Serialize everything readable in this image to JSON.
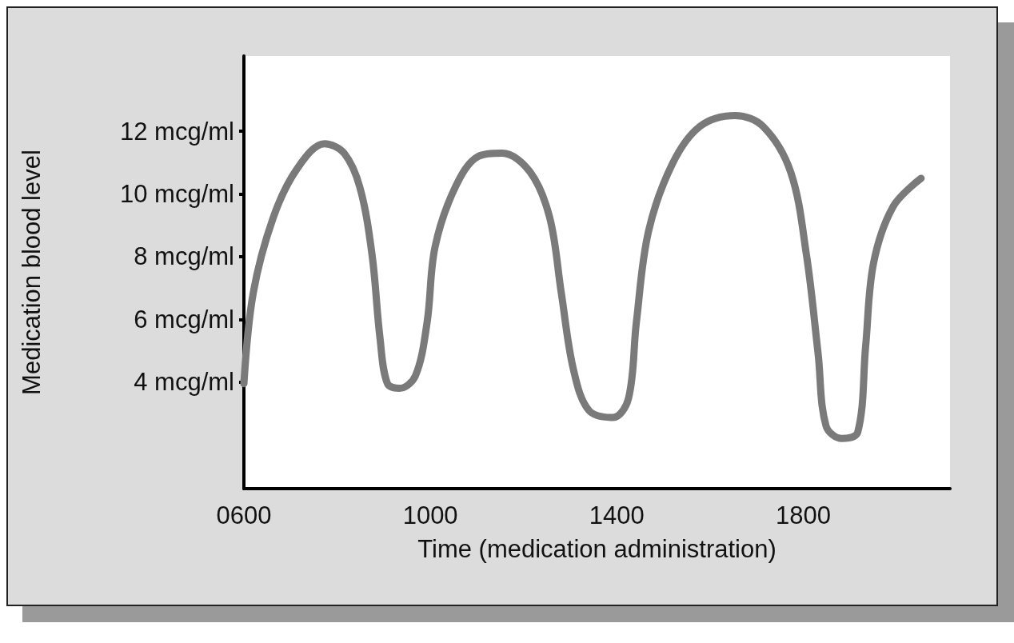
{
  "chart_data": {
    "type": "line",
    "xlabel": "Time (medication administration)",
    "ylabel": "Medication blood level",
    "xlim": [
      600,
      2115
    ],
    "xticks": [
      {
        "value": 600,
        "label": "0600"
      },
      1000,
      1400,
      1800
    ],
    "ylim": [
      0.6,
      14.4
    ],
    "yticks": [
      {
        "value": 4,
        "label": "4 mcg/ml"
      },
      {
        "value": 6,
        "label": "6 mcg/ml"
      },
      {
        "value": 8,
        "label": "8 mcg/ml"
      },
      {
        "value": 10,
        "label": "10 mcg/ml"
      },
      {
        "value": 12,
        "label": "12 mcg/ml"
      }
    ],
    "grid": false,
    "line_style": "solid",
    "series": [
      {
        "color": "#7a7a7a",
        "x": [
          600,
          620,
          663,
          714,
          773,
          815,
          849,
          875,
          892,
          908,
          934,
          968,
          993,
          1010,
          1053,
          1103,
          1154,
          1214,
          1256,
          1281,
          1307,
          1340,
          1392,
          1425,
          1442,
          1468,
          1519,
          1578,
          1654,
          1714,
          1773,
          1807,
          1832,
          1849,
          1883,
          1917,
          1934,
          1951,
          1993,
          2053
        ],
        "values": [
          3.95,
          6.84,
          9.25,
          10.8,
          11.6,
          11.3,
          10.2,
          8.05,
          5.4,
          3.95,
          3.8,
          4.2,
          5.9,
          8.3,
          10.2,
          11.2,
          11.3,
          10.7,
          9.25,
          6.84,
          4.4,
          3.1,
          2.87,
          3.47,
          5.9,
          8.8,
          10.95,
          12.15,
          12.5,
          12.15,
          10.7,
          8.05,
          4.9,
          2.6,
          2.2,
          2.4,
          5.15,
          7.8,
          9.6,
          10.5
        ]
      }
    ]
  }
}
